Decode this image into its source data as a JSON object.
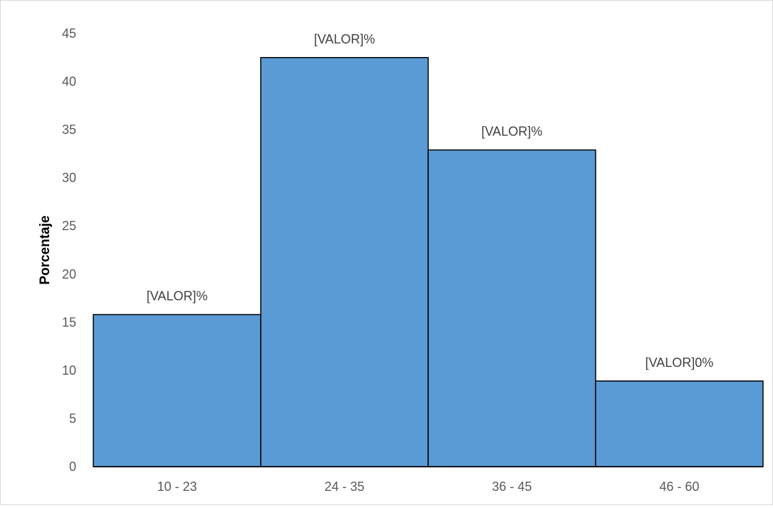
{
  "chart_data": {
    "type": "bar",
    "categories": [
      "10 - 23",
      "24 - 35",
      "36 - 45",
      "46 - 60"
    ],
    "values": [
      15.8,
      42.5,
      32.9,
      8.9
    ],
    "data_labels": [
      "[VALOR]%",
      "[VALOR]%",
      "[VALOR]%",
      "[VALOR]0%"
    ],
    "title": "",
    "xlabel": "",
    "ylabel": "Porcentaje",
    "ylim": [
      0,
      45
    ],
    "yticks": [
      "0",
      "5",
      "10",
      "15",
      "20",
      "25",
      "30",
      "35",
      "40",
      "45"
    ],
    "grid": false,
    "legend": "none",
    "colors": {
      "bar_fill": "#5b9bd5",
      "bar_stroke": "#000000",
      "axis": "#000000"
    }
  }
}
